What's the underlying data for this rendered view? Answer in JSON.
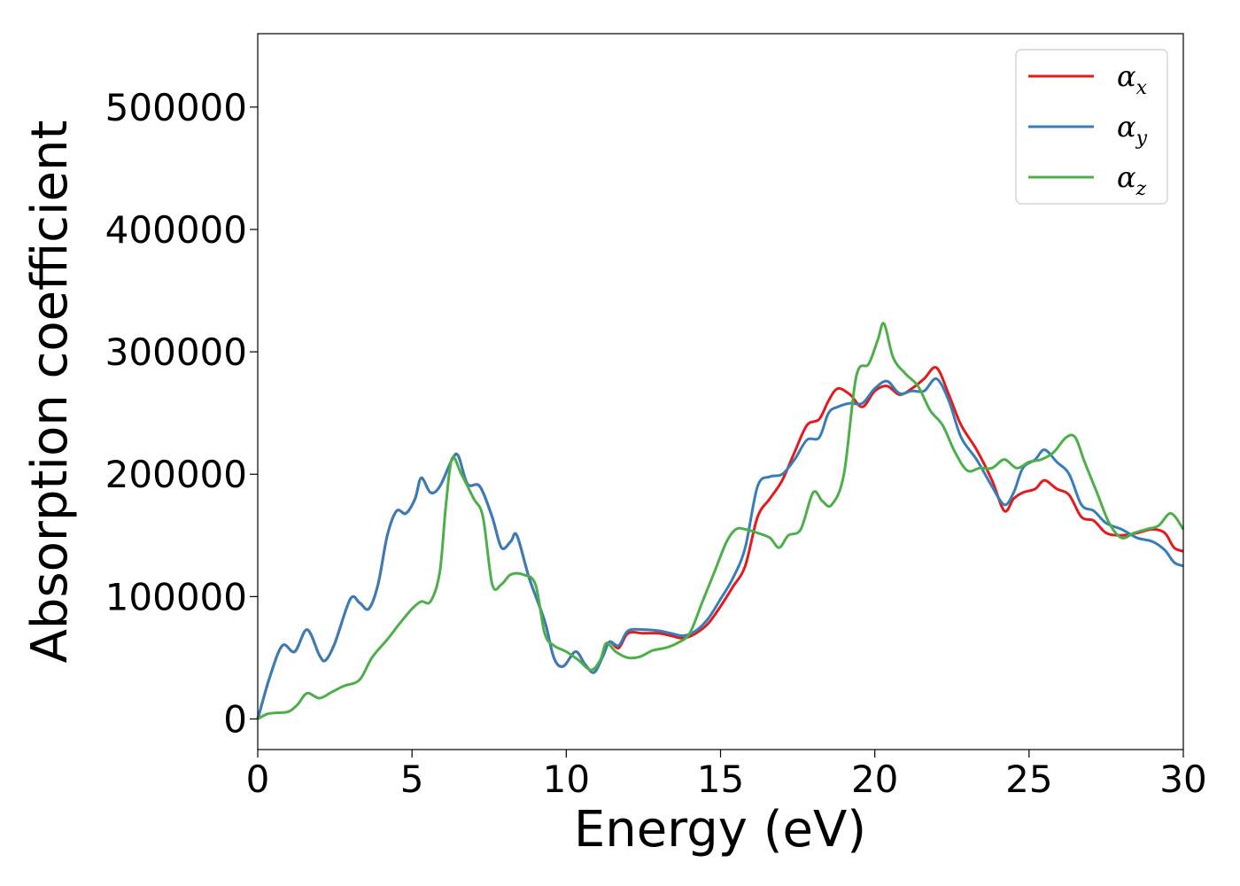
{
  "chart_data": {
    "type": "line",
    "xlabel": "Energy (eV)",
    "ylabel": "Absorption coefficient",
    "xlim": [
      0,
      30
    ],
    "ylim": [
      -25000,
      560000
    ],
    "x_ticks": [
      0,
      5,
      10,
      15,
      20,
      25,
      30
    ],
    "x_tick_labels": [
      "0",
      "5",
      "10",
      "15",
      "20",
      "25",
      "30"
    ],
    "y_ticks": [
      0,
      100000,
      200000,
      300000,
      400000,
      500000
    ],
    "y_tick_labels": [
      "0",
      "100000",
      "200000",
      "300000",
      "400000",
      "500000"
    ],
    "grid": false,
    "legend_position": "top-right",
    "series": [
      {
        "name": "α_x",
        "legend_base": "α",
        "legend_sub": "x",
        "color": "#e41a1c",
        "points": [
          [
            0,
            0
          ],
          [
            0.4,
            35000
          ],
          [
            0.8,
            60000
          ],
          [
            1.2,
            55000
          ],
          [
            1.6,
            73000
          ],
          [
            2,
            52000
          ],
          [
            2.2,
            48000
          ],
          [
            2.5,
            62000
          ],
          [
            3,
            98000
          ],
          [
            3.3,
            95000
          ],
          [
            3.6,
            90000
          ],
          [
            3.9,
            110000
          ],
          [
            4.2,
            150000
          ],
          [
            4.5,
            170000
          ],
          [
            4.8,
            168000
          ],
          [
            5.1,
            180000
          ],
          [
            5.3,
            197000
          ],
          [
            5.6,
            185000
          ],
          [
            5.9,
            190000
          ],
          [
            6.3,
            212000
          ],
          [
            6.5,
            215000
          ],
          [
            6.8,
            192000
          ],
          [
            7.2,
            190000
          ],
          [
            7.6,
            165000
          ],
          [
            7.9,
            140000
          ],
          [
            8.2,
            145000
          ],
          [
            8.4,
            150000
          ],
          [
            8.8,
            115000
          ],
          [
            9.3,
            80000
          ],
          [
            9.6,
            50000
          ],
          [
            9.9,
            43000
          ],
          [
            10.3,
            55000
          ],
          [
            10.6,
            45000
          ],
          [
            10.9,
            38000
          ],
          [
            11.2,
            52000
          ],
          [
            11.4,
            63000
          ],
          [
            11.7,
            58000
          ],
          [
            12,
            70000
          ],
          [
            12.5,
            70000
          ],
          [
            13,
            70000
          ],
          [
            13.4,
            68000
          ],
          [
            13.8,
            66000
          ],
          [
            14.2,
            70000
          ],
          [
            14.6,
            78000
          ],
          [
            15,
            92000
          ],
          [
            15.4,
            108000
          ],
          [
            15.8,
            125000
          ],
          [
            16.2,
            165000
          ],
          [
            16.6,
            180000
          ],
          [
            17,
            195000
          ],
          [
            17.4,
            218000
          ],
          [
            17.8,
            240000
          ],
          [
            18.2,
            245000
          ],
          [
            18.5,
            260000
          ],
          [
            18.8,
            270000
          ],
          [
            19.2,
            265000
          ],
          [
            19.6,
            255000
          ],
          [
            20,
            268000
          ],
          [
            20.4,
            272000
          ],
          [
            20.8,
            265000
          ],
          [
            21.2,
            270000
          ],
          [
            21.6,
            278000
          ],
          [
            22,
            287000
          ],
          [
            22.4,
            265000
          ],
          [
            22.8,
            240000
          ],
          [
            23.3,
            220000
          ],
          [
            23.8,
            195000
          ],
          [
            24.2,
            170000
          ],
          [
            24.5,
            180000
          ],
          [
            24.8,
            185000
          ],
          [
            25.2,
            188000
          ],
          [
            25.5,
            195000
          ],
          [
            25.9,
            188000
          ],
          [
            26.3,
            183000
          ],
          [
            26.7,
            165000
          ],
          [
            27.1,
            162000
          ],
          [
            27.5,
            152000
          ],
          [
            28,
            150000
          ],
          [
            28.5,
            152000
          ],
          [
            29,
            155000
          ],
          [
            29.4,
            152000
          ],
          [
            29.7,
            140000
          ],
          [
            30,
            137000
          ]
        ]
      },
      {
        "name": "α_y",
        "legend_base": "α",
        "legend_sub": "y",
        "color": "#377eb8",
        "points": [
          [
            0,
            0
          ],
          [
            0.4,
            35000
          ],
          [
            0.8,
            60000
          ],
          [
            1.2,
            55000
          ],
          [
            1.6,
            73000
          ],
          [
            2,
            52000
          ],
          [
            2.2,
            48000
          ],
          [
            2.5,
            62000
          ],
          [
            3,
            98000
          ],
          [
            3.3,
            95000
          ],
          [
            3.6,
            90000
          ],
          [
            3.9,
            110000
          ],
          [
            4.2,
            150000
          ],
          [
            4.5,
            170000
          ],
          [
            4.8,
            168000
          ],
          [
            5.1,
            180000
          ],
          [
            5.3,
            197000
          ],
          [
            5.6,
            185000
          ],
          [
            5.9,
            190000
          ],
          [
            6.3,
            212000
          ],
          [
            6.5,
            215000
          ],
          [
            6.8,
            192000
          ],
          [
            7.2,
            190000
          ],
          [
            7.6,
            165000
          ],
          [
            7.9,
            140000
          ],
          [
            8.2,
            145000
          ],
          [
            8.4,
            150000
          ],
          [
            8.8,
            115000
          ],
          [
            9.3,
            80000
          ],
          [
            9.6,
            50000
          ],
          [
            9.9,
            43000
          ],
          [
            10.3,
            55000
          ],
          [
            10.6,
            45000
          ],
          [
            10.9,
            38000
          ],
          [
            11.2,
            52000
          ],
          [
            11.4,
            63000
          ],
          [
            11.7,
            60000
          ],
          [
            12,
            72000
          ],
          [
            12.5,
            73000
          ],
          [
            13,
            72000
          ],
          [
            13.4,
            70000
          ],
          [
            13.8,
            68000
          ],
          [
            14.2,
            72000
          ],
          [
            14.6,
            82000
          ],
          [
            15,
            98000
          ],
          [
            15.4,
            115000
          ],
          [
            15.8,
            140000
          ],
          [
            16.2,
            190000
          ],
          [
            16.6,
            198000
          ],
          [
            17,
            200000
          ],
          [
            17.4,
            212000
          ],
          [
            17.8,
            228000
          ],
          [
            18.2,
            230000
          ],
          [
            18.5,
            250000
          ],
          [
            18.8,
            255000
          ],
          [
            19.2,
            258000
          ],
          [
            19.6,
            258000
          ],
          [
            20,
            270000
          ],
          [
            20.4,
            276000
          ],
          [
            20.8,
            266000
          ],
          [
            21.2,
            268000
          ],
          [
            21.6,
            268000
          ],
          [
            22,
            278000
          ],
          [
            22.4,
            260000
          ],
          [
            22.8,
            230000
          ],
          [
            23.3,
            212000
          ],
          [
            23.8,
            190000
          ],
          [
            24.2,
            175000
          ],
          [
            24.5,
            185000
          ],
          [
            24.8,
            205000
          ],
          [
            25.2,
            212000
          ],
          [
            25.5,
            220000
          ],
          [
            25.9,
            210000
          ],
          [
            26.3,
            200000
          ],
          [
            26.7,
            175000
          ],
          [
            27.1,
            170000
          ],
          [
            27.5,
            160000
          ],
          [
            28,
            155000
          ],
          [
            28.5,
            148000
          ],
          [
            29,
            145000
          ],
          [
            29.4,
            138000
          ],
          [
            29.7,
            128000
          ],
          [
            30,
            125000
          ]
        ]
      },
      {
        "name": "α_z",
        "legend_base": "α",
        "legend_sub": "z",
        "color": "#4daf4a",
        "points": [
          [
            0,
            0
          ],
          [
            0.3,
            4000
          ],
          [
            0.6,
            5000
          ],
          [
            1,
            6000
          ],
          [
            1.3,
            12000
          ],
          [
            1.6,
            21000
          ],
          [
            2,
            17000
          ],
          [
            2.4,
            22000
          ],
          [
            2.8,
            27000
          ],
          [
            3.3,
            32000
          ],
          [
            3.7,
            50000
          ],
          [
            4.2,
            65000
          ],
          [
            4.6,
            78000
          ],
          [
            5,
            90000
          ],
          [
            5.3,
            96000
          ],
          [
            5.6,
            96000
          ],
          [
            5.9,
            120000
          ],
          [
            6.1,
            175000
          ],
          [
            6.3,
            213000
          ],
          [
            6.6,
            200000
          ],
          [
            7,
            180000
          ],
          [
            7.3,
            165000
          ],
          [
            7.6,
            110000
          ],
          [
            7.9,
            110000
          ],
          [
            8.2,
            118000
          ],
          [
            8.6,
            118000
          ],
          [
            9,
            110000
          ],
          [
            9.3,
            70000
          ],
          [
            9.6,
            60000
          ],
          [
            10,
            55000
          ],
          [
            10.4,
            48000
          ],
          [
            10.8,
            40000
          ],
          [
            11.1,
            48000
          ],
          [
            11.3,
            62000
          ],
          [
            11.6,
            55000
          ],
          [
            12,
            50000
          ],
          [
            12.4,
            51000
          ],
          [
            12.8,
            56000
          ],
          [
            13.2,
            58000
          ],
          [
            13.6,
            62000
          ],
          [
            14,
            70000
          ],
          [
            14.4,
            95000
          ],
          [
            14.8,
            120000
          ],
          [
            15.2,
            145000
          ],
          [
            15.5,
            155000
          ],
          [
            15.8,
            155000
          ],
          [
            16.2,
            152000
          ],
          [
            16.6,
            148000
          ],
          [
            16.9,
            140000
          ],
          [
            17.2,
            150000
          ],
          [
            17.6,
            155000
          ],
          [
            18,
            185000
          ],
          [
            18.3,
            178000
          ],
          [
            18.6,
            175000
          ],
          [
            19,
            200000
          ],
          [
            19.4,
            280000
          ],
          [
            19.8,
            290000
          ],
          [
            20.1,
            310000
          ],
          [
            20.3,
            323000
          ],
          [
            20.6,
            295000
          ],
          [
            21,
            282000
          ],
          [
            21.4,
            272000
          ],
          [
            21.8,
            252000
          ],
          [
            22.2,
            240000
          ],
          [
            22.6,
            218000
          ],
          [
            23,
            203000
          ],
          [
            23.4,
            205000
          ],
          [
            23.8,
            205000
          ],
          [
            24.2,
            212000
          ],
          [
            24.6,
            205000
          ],
          [
            25,
            210000
          ],
          [
            25.4,
            212000
          ],
          [
            25.8,
            218000
          ],
          [
            26.2,
            230000
          ],
          [
            26.5,
            230000
          ],
          [
            26.8,
            210000
          ],
          [
            27.2,
            185000
          ],
          [
            27.6,
            160000
          ],
          [
            28,
            148000
          ],
          [
            28.4,
            152000
          ],
          [
            28.8,
            155000
          ],
          [
            29.2,
            158000
          ],
          [
            29.6,
            168000
          ],
          [
            30,
            155000
          ]
        ]
      }
    ]
  }
}
